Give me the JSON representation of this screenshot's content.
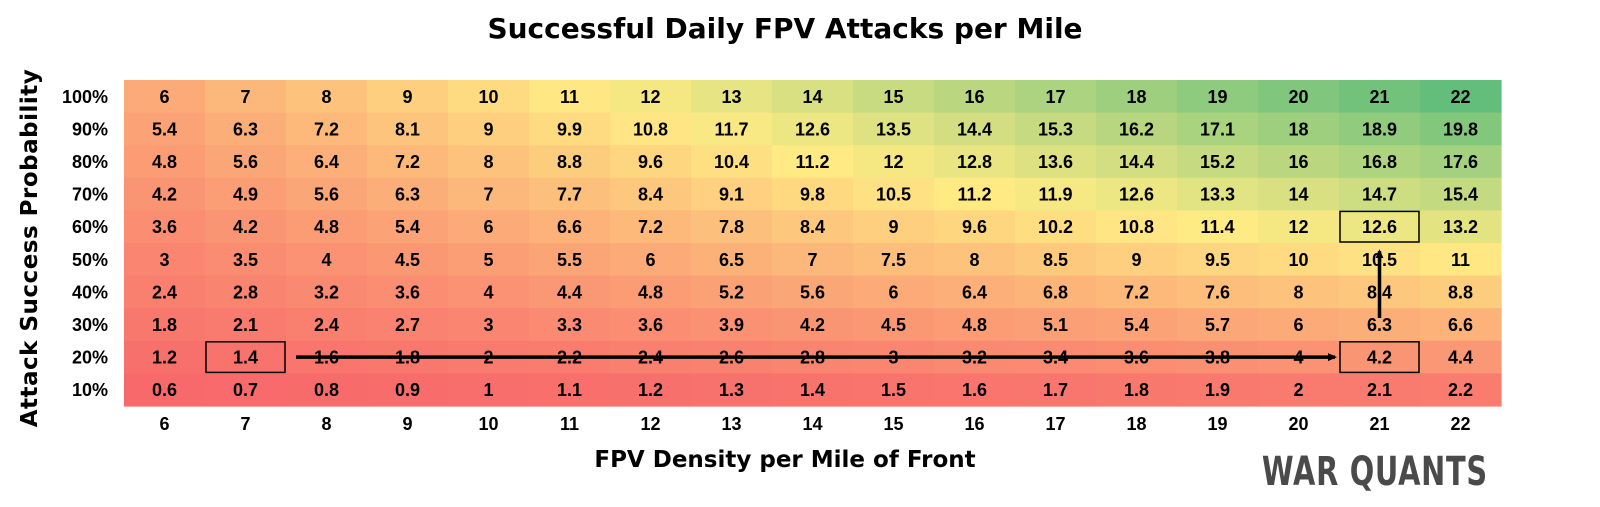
{
  "chart_data": {
    "type": "heatmap",
    "title": "Successful Daily FPV Attacks per Mile",
    "xlabel": "FPV Density per Mile of Front",
    "ylabel": "Attack Success Probability",
    "x": [
      6,
      7,
      8,
      9,
      10,
      11,
      12,
      13,
      14,
      15,
      16,
      17,
      18,
      19,
      20,
      21,
      22
    ],
    "y_labels": [
      "100%",
      "90%",
      "80%",
      "70%",
      "60%",
      "50%",
      "40%",
      "30%",
      "20%",
      "10%"
    ],
    "values": [
      [
        6,
        7,
        8,
        9,
        10,
        11,
        12,
        13,
        14,
        15,
        16,
        17,
        18,
        19,
        20,
        21,
        22
      ],
      [
        5.4,
        6.3,
        7.2,
        8.1,
        9,
        9.9,
        10.8,
        11.7,
        12.6,
        13.5,
        14.4,
        15.3,
        16.2,
        17.1,
        18,
        18.9,
        19.8
      ],
      [
        4.8,
        5.6,
        6.4,
        7.2,
        8,
        8.8,
        9.6,
        10.4,
        11.2,
        12,
        12.8,
        13.6,
        14.4,
        15.2,
        16,
        16.8,
        17.6
      ],
      [
        4.2,
        4.9,
        5.6,
        6.3,
        7,
        7.7,
        8.4,
        9.1,
        9.8,
        10.5,
        11.2,
        11.9,
        12.6,
        13.3,
        14,
        14.7,
        15.4
      ],
      [
        3.6,
        4.2,
        4.8,
        5.4,
        6,
        6.6,
        7.2,
        7.8,
        8.4,
        9,
        9.6,
        10.2,
        10.8,
        11.4,
        12,
        12.6,
        13.2
      ],
      [
        3,
        3.5,
        4,
        4.5,
        5,
        5.5,
        6,
        6.5,
        7,
        7.5,
        8,
        8.5,
        9,
        9.5,
        10,
        10.5,
        11
      ],
      [
        2.4,
        2.8,
        3.2,
        3.6,
        4,
        4.4,
        4.8,
        5.2,
        5.6,
        6,
        6.4,
        6.8,
        7.2,
        7.6,
        8,
        8.4,
        8.8
      ],
      [
        1.8,
        2.1,
        2.4,
        2.7,
        3,
        3.3,
        3.6,
        3.9,
        4.2,
        4.5,
        4.8,
        5.1,
        5.4,
        5.7,
        6,
        6.3,
        6.6
      ],
      [
        1.2,
        1.4,
        1.6,
        1.8,
        2,
        2.2,
        2.4,
        2.6,
        2.8,
        3,
        3.2,
        3.4,
        3.6,
        3.8,
        4,
        4.2,
        4.4
      ],
      [
        0.6,
        0.7,
        0.8,
        0.9,
        1,
        1.1,
        1.2,
        1.3,
        1.4,
        1.5,
        1.6,
        1.7,
        1.8,
        1.9,
        2,
        2.1,
        2.2
      ]
    ],
    "color_scale": {
      "low": "#f8696b",
      "mid": "#ffeb84",
      "high": "#63be7b"
    },
    "highlights": [
      {
        "row": 8,
        "col": 1
      },
      {
        "row": 8,
        "col": 15
      },
      {
        "row": 4,
        "col": 15
      }
    ],
    "arrows": [
      {
        "from": {
          "row": 8,
          "col": 2
        },
        "to": {
          "row": 8,
          "col": 14
        }
      },
      {
        "from": {
          "row": 7,
          "col": 15
        },
        "to": {
          "row": 5,
          "col": 15
        }
      }
    ]
  },
  "watermark": "WAR QUANTS"
}
